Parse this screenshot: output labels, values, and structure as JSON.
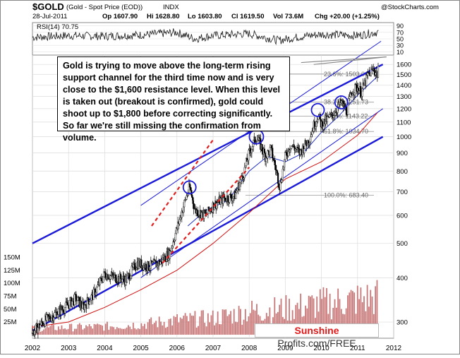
{
  "header": {
    "symbol": "$GOLD",
    "description": "(Gold - Spot Price (EOD))",
    "exchange": "INDX",
    "date": "28-Jul-2011",
    "open": "Op 1607.90",
    "high": "Hi 1628.80",
    "low": "Lo 1603.80",
    "close": "Cl 1619.50",
    "volume": "Vol 73.6M",
    "change": "Chg +20.00 (+1.25%)",
    "brand": "@StockCharts.com"
  },
  "rsi": {
    "label": "RSI(14) 70.75",
    "value": 70.75,
    "ticks": [
      "90",
      "70",
      "50",
      "30",
      "10"
    ]
  },
  "annotation": "Gold is trying to move above the long-term rising support channel for the third time now and is very close to the $1,600 resistance level. When this level is taken out (breakout is confirmed), gold could shoot up to $1,800 before correcting significantly. So far we're still missing the confirmation from volume.",
  "watermark": {
    "part1": "Sunshine",
    "part2": " Profits.com/FREE"
  },
  "colors": {
    "rsi_line": "#1a1a1a",
    "channel": "#1a1ad8",
    "trend_dashed": "#e02020",
    "ma_long": "#d01010",
    "ma_short": "#2030c0",
    "bull_candle": "#ffffff",
    "bear_candle": "#000000",
    "volume": "#c87878",
    "fib": "#999999",
    "circle": "#1a1ad8"
  },
  "chart_data": {
    "type": "candlestick",
    "title": "$GOLD",
    "price_scale": "log",
    "price_ticks": [
      "1600",
      "1500",
      "1400",
      "1300",
      "1200",
      "1100",
      "1000",
      "900",
      "800",
      "700",
      "600",
      "500",
      "400",
      "300"
    ],
    "volume_ticks": [
      "150M",
      "125M",
      "100M",
      "75M",
      "50M",
      "25M"
    ],
    "x_ticks": [
      "2002",
      "2003",
      "2004",
      "2005",
      "2006",
      "2007",
      "2008",
      "2009",
      "2010",
      "2011",
      "2012"
    ],
    "x_range": [
      2002.0,
      2012.0
    ],
    "y_range": [
      270,
      1700
    ],
    "grid": true,
    "fibonacci": [
      {
        "label": "23.6%: 1503.04",
        "value": 1503.04
      },
      {
        "label": "38.2%: 1251.73",
        "value": 1251.73
      },
      {
        "label": "50.0%: 1143.22",
        "value": 1143.22
      },
      {
        "label": "61.8%: 1034.70",
        "value": 1034.7
      },
      {
        "label": "100.0%: 683.40",
        "value": 683.4
      }
    ],
    "price_path": [
      [
        2002.0,
        280
      ],
      [
        2002.3,
        300
      ],
      [
        2002.6,
        315
      ],
      [
        2002.9,
        330
      ],
      [
        2003.2,
        350
      ],
      [
        2003.4,
        330
      ],
      [
        2003.7,
        360
      ],
      [
        2004.0,
        410
      ],
      [
        2004.3,
        400
      ],
      [
        2004.6,
        395
      ],
      [
        2004.9,
        440
      ],
      [
        2005.2,
        430
      ],
      [
        2005.5,
        440
      ],
      [
        2005.8,
        470
      ],
      [
        2006.0,
        550
      ],
      [
        2006.35,
        720
      ],
      [
        2006.5,
        620
      ],
      [
        2006.8,
        600
      ],
      [
        2007.0,
        640
      ],
      [
        2007.3,
        670
      ],
      [
        2007.6,
        680
      ],
      [
        2007.85,
        790
      ],
      [
        2008.0,
        900
      ],
      [
        2008.2,
        1000
      ],
      [
        2008.45,
        880
      ],
      [
        2008.6,
        920
      ],
      [
        2008.75,
        800
      ],
      [
        2008.85,
        720
      ],
      [
        2009.0,
        880
      ],
      [
        2009.15,
        950
      ],
      [
        2009.4,
        900
      ],
      [
        2009.65,
        980
      ],
      [
        2009.9,
        1150
      ],
      [
        2010.0,
        1080
      ],
      [
        2010.3,
        1150
      ],
      [
        2010.55,
        1250
      ],
      [
        2010.7,
        1180
      ],
      [
        2010.85,
        1350
      ],
      [
        2011.0,
        1380
      ],
      [
        2011.1,
        1330
      ],
      [
        2011.3,
        1500
      ],
      [
        2011.45,
        1550
      ],
      [
        2011.55,
        1500
      ],
      [
        2011.58,
        1620
      ]
    ],
    "ma_short_path": [
      [
        2006.3,
        560
      ],
      [
        2006.8,
        620
      ],
      [
        2007.4,
        660
      ],
      [
        2008.0,
        800
      ],
      [
        2008.5,
        880
      ],
      [
        2009.0,
        850
      ],
      [
        2009.5,
        900
      ],
      [
        2010.0,
        1030
      ],
      [
        2010.5,
        1150
      ],
      [
        2011.0,
        1310
      ],
      [
        2011.55,
        1480
      ]
    ],
    "ma_long_path": [
      [
        2002.0,
        290
      ],
      [
        2003.0,
        300
      ],
      [
        2004.0,
        330
      ],
      [
        2005.0,
        370
      ],
      [
        2006.0,
        420
      ],
      [
        2007.0,
        500
      ],
      [
        2008.0,
        610
      ],
      [
        2009.0,
        760
      ],
      [
        2010.0,
        850
      ],
      [
        2011.0,
        1010
      ],
      [
        2011.55,
        1170
      ]
    ],
    "volume_profile": [
      [
        2002.0,
        12
      ],
      [
        2003.0,
        14
      ],
      [
        2004.0,
        16
      ],
      [
        2005.0,
        20
      ],
      [
        2006.0,
        28
      ],
      [
        2007.0,
        32
      ],
      [
        2008.0,
        45
      ],
      [
        2009.0,
        50
      ],
      [
        2010.0,
        60
      ],
      [
        2011.0,
        68
      ],
      [
        2011.55,
        72
      ]
    ],
    "rsi_path": [
      [
        2002.0,
        55
      ],
      [
        2003.0,
        60
      ],
      [
        2004.0,
        58
      ],
      [
        2005.0,
        62
      ],
      [
        2006.0,
        70
      ],
      [
        2006.5,
        50
      ],
      [
        2007.0,
        60
      ],
      [
        2008.0,
        66
      ],
      [
        2008.8,
        45
      ],
      [
        2009.5,
        58
      ],
      [
        2010.0,
        64
      ],
      [
        2011.0,
        60
      ],
      [
        2011.55,
        70.75
      ]
    ]
  }
}
